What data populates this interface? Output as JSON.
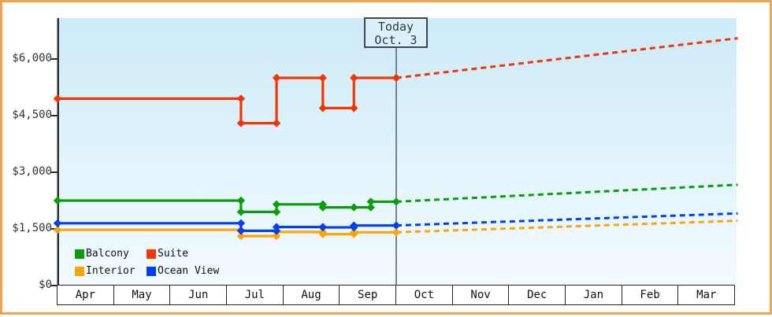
{
  "today_box": {
    "line1": "Today",
    "line2": "Oct. 3"
  },
  "chart_data": {
    "type": "line",
    "title": "",
    "categories": [
      "Apr",
      "May",
      "Jun",
      "Jul",
      "Aug",
      "Sep",
      "Oct",
      "Nov",
      "Dec",
      "Jan",
      "Feb",
      "Mar"
    ],
    "y_ticks": [
      {
        "value": 0,
        "label": "$0"
      },
      {
        "value": 1500,
        "label": "$1,500"
      },
      {
        "value": 3000,
        "label": "$3,000"
      },
      {
        "value": 4500,
        "label": "$4,500"
      },
      {
        "value": 6000,
        "label": "$6,000"
      }
    ],
    "ylim": [
      0,
      6600
    ],
    "grid": false,
    "legend_position": "bottom-left-inside",
    "today": {
      "month_offset": 6.0,
      "label": [
        "Today",
        "Oct. 3"
      ]
    },
    "legend_order": [
      "Balcony",
      "Suite",
      "Interior",
      "Ocean View"
    ],
    "series": [
      {
        "name": "Interior",
        "color": "#ffa405",
        "solid_points": [
          [
            0,
            1475
          ],
          [
            3.25,
            1310
          ],
          [
            3.88,
            1420
          ],
          [
            4.7,
            1360
          ],
          [
            5.25,
            1410
          ],
          [
            6,
            1410
          ]
        ],
        "forecast": {
          "end_month": 12.05,
          "end_value": 1715
        }
      },
      {
        "name": "Ocean View",
        "color": "#0340f0",
        "solid_points": [
          [
            0,
            1650
          ],
          [
            3.25,
            1450
          ],
          [
            3.88,
            1550
          ],
          [
            4.7,
            1540
          ],
          [
            5.25,
            1590
          ],
          [
            6,
            1590
          ]
        ],
        "forecast": {
          "end_month": 12.05,
          "end_value": 1910
        }
      },
      {
        "name": "Balcony",
        "color": "#0a9e0a",
        "solid_points": [
          [
            0,
            2250
          ],
          [
            3.25,
            1950
          ],
          [
            3.88,
            2150
          ],
          [
            4.7,
            2070
          ],
          [
            5.25,
            2070
          ],
          [
            5.55,
            2220
          ],
          [
            6,
            2220
          ]
        ],
        "forecast": {
          "end_month": 12.05,
          "end_value": 2670
        }
      },
      {
        "name": "Suite",
        "color": "#f63505",
        "solid_points": [
          [
            0,
            4950
          ],
          [
            3.25,
            4300
          ],
          [
            3.88,
            5500
          ],
          [
            4.7,
            4700
          ],
          [
            5.25,
            5500
          ],
          [
            6,
            5500
          ]
        ],
        "forecast": {
          "end_month": 12.05,
          "end_value": 6550
        }
      }
    ]
  },
  "colors": {
    "frame_border": "#eda551",
    "plot_bg_top": "#cdebf8",
    "plot_bg_bottom": "#f3fbff",
    "axis": "#2f2f2f",
    "today_line": "#4a5560",
    "today_box_bg": "#dcf0fa",
    "month_bg": "#ffffff"
  }
}
